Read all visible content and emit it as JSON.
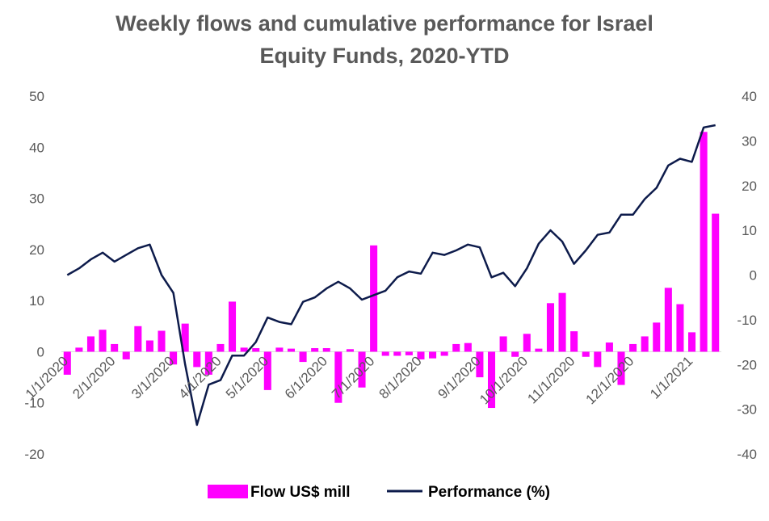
{
  "title_line1": "Weekly flows and cumulative performance for Israel",
  "title_line2": "Equity Funds, 2020-YTD",
  "colors": {
    "bar": "#ff00ff",
    "line": "#0d1b4b",
    "text": "#595959",
    "zero_line": "#d9d9d9"
  },
  "chart_data": {
    "type": "bar+line",
    "title": "Weekly flows and cumulative performance for Israel Equity Funds, 2020-YTD",
    "x_tick_labels": [
      "1/1/2020",
      "2/1/2020",
      "3/1/2020",
      "4/1/2020",
      "5/1/2020",
      "6/1/2020",
      "7/1/2020",
      "8/1/2020",
      "9/1/2020",
      "10/1/2020",
      "11/1/2020",
      "12/1/2020",
      "1/1/2021"
    ],
    "x_tick_week_index": [
      0,
      4,
      9,
      13,
      17,
      22,
      26,
      30,
      35,
      39,
      43,
      48,
      53
    ],
    "left_axis": {
      "ylim": [
        -20,
        50
      ],
      "ticks": [
        -20,
        -10,
        0,
        10,
        20,
        30,
        40,
        50
      ]
    },
    "right_axis": {
      "ylim": [
        -40,
        40
      ],
      "ticks": [
        -40,
        -30,
        -20,
        -10,
        0,
        10,
        20,
        30,
        40
      ]
    },
    "legend": {
      "position": "bottom",
      "entries": [
        "Flow US$ mill",
        "Performance (%)"
      ]
    },
    "series": [
      {
        "name": "Flow US$ mill",
        "type": "bar",
        "axis": "left",
        "values": [
          -4.5,
          0.8,
          3,
          4.3,
          1.5,
          -1.5,
          5,
          2.2,
          4.1,
          -2.5,
          5.5,
          -3,
          -4.5,
          1.5,
          9.8,
          0.8,
          0.7,
          -7.5,
          0.8,
          0.6,
          -2,
          0.7,
          0.7,
          -10,
          0.5,
          -7,
          20.8,
          -0.8,
          -0.8,
          -0.7,
          -1.5,
          -1.3,
          -0.8,
          1.5,
          1.7,
          -5,
          -11,
          3,
          -1,
          3.5,
          0.6,
          9.5,
          11.5,
          4,
          -1,
          -3,
          1.8,
          -6.5,
          1.5,
          3,
          5.7,
          12.5,
          9.3,
          3.8,
          43,
          27
        ]
      },
      {
        "name": "Performance (%)",
        "type": "line",
        "axis": "right",
        "values": [
          0,
          1.5,
          3.5,
          5,
          3,
          4.5,
          6,
          6.8,
          0,
          -4,
          -20,
          -33.5,
          -24.5,
          -23.5,
          -18,
          -18,
          -15,
          -9.5,
          -10.5,
          -11,
          -6,
          -5,
          -3,
          -1.5,
          -3,
          -5.5,
          -4.5,
          -3.5,
          -0.5,
          0.8,
          0.3,
          5,
          4.5,
          5.5,
          6.8,
          6.2,
          -0.5,
          0.5,
          -2.5,
          1.5,
          7,
          10,
          7.5,
          2.5,
          5.5,
          9,
          9.5,
          13.5,
          13.5,
          17,
          19.5,
          24.5,
          26,
          25.3,
          33,
          33.5
        ]
      }
    ]
  }
}
